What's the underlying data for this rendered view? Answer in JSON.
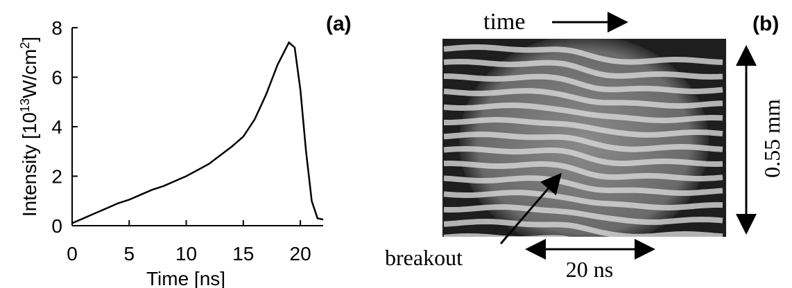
{
  "chart_data": {
    "type": "line",
    "panel_label": "(a)",
    "x_label": "Time [ns]",
    "y_label_parts": [
      "Intensity [10",
      "13",
      "W/cm",
      "2",
      "]"
    ],
    "x": [
      0,
      1,
      2,
      3,
      4,
      5,
      6,
      7,
      8,
      9,
      10,
      11,
      12,
      13,
      14,
      15,
      16,
      17,
      18,
      19,
      19.5,
      20,
      20.5,
      21,
      21.5,
      22
    ],
    "series": [
      {
        "color": "#000000",
        "values": [
          0.1,
          0.3,
          0.5,
          0.7,
          0.9,
          1.05,
          1.25,
          1.45,
          1.6,
          1.8,
          2.0,
          2.25,
          2.5,
          2.85,
          3.2,
          3.6,
          4.3,
          5.3,
          6.5,
          7.4,
          7.2,
          5.5,
          3.0,
          1.0,
          0.3,
          0.25
        ]
      }
    ],
    "xlim": [
      0,
      22
    ],
    "xticks": [
      0,
      5,
      10,
      15,
      20
    ],
    "ylim": [
      0,
      8
    ],
    "yticks": [
      0,
      2,
      4,
      6,
      8
    ]
  },
  "panel_b": {
    "panel_label": "(b)",
    "time_label": "time",
    "breakout_label": "breakout",
    "duration_label": "20 ns",
    "size_label": "0.55 mm"
  }
}
